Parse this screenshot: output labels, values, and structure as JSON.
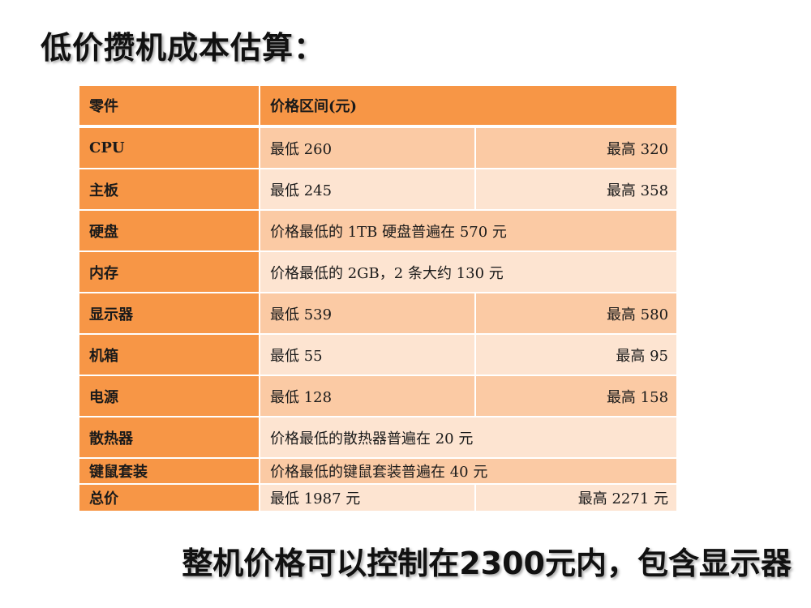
{
  "title": "低价攒机成本估算：",
  "table": {
    "header": {
      "part": "零件",
      "price_range": "价格区间(元)"
    },
    "rows": [
      {
        "part": "CPU",
        "low": "最低 260",
        "high": "最高 320"
      },
      {
        "part": "主板",
        "low": "最低 245",
        "high": "最高 358"
      },
      {
        "part": "硬盘",
        "note": "价格最低的 1TB 硬盘普遍在 570 元"
      },
      {
        "part": "内存",
        "note": "价格最低的 2GB，2 条大约 130 元"
      },
      {
        "part": "显示器",
        "low": "最低 539",
        "high": "最高 580"
      },
      {
        "part": "机箱",
        "low": "最低 55",
        "high": "最高 95"
      },
      {
        "part": "电源",
        "low": "最低 128",
        "high": "最高 158"
      },
      {
        "part": "散热器",
        "note": "价格最低的散热器普遍在 20 元"
      },
      {
        "part": "键鼠套装",
        "note": "价格最低的键鼠套装普遍在 40 元"
      },
      {
        "part": "总价",
        "low": "最低 1987 元",
        "high": "最高 2271 元"
      }
    ]
  },
  "footer": "整机价格可以控制在2300元内，包含显示器",
  "colors": {
    "header": "#f79646",
    "row_dark": "#fbcaa4",
    "row_light": "#fde4d1"
  }
}
